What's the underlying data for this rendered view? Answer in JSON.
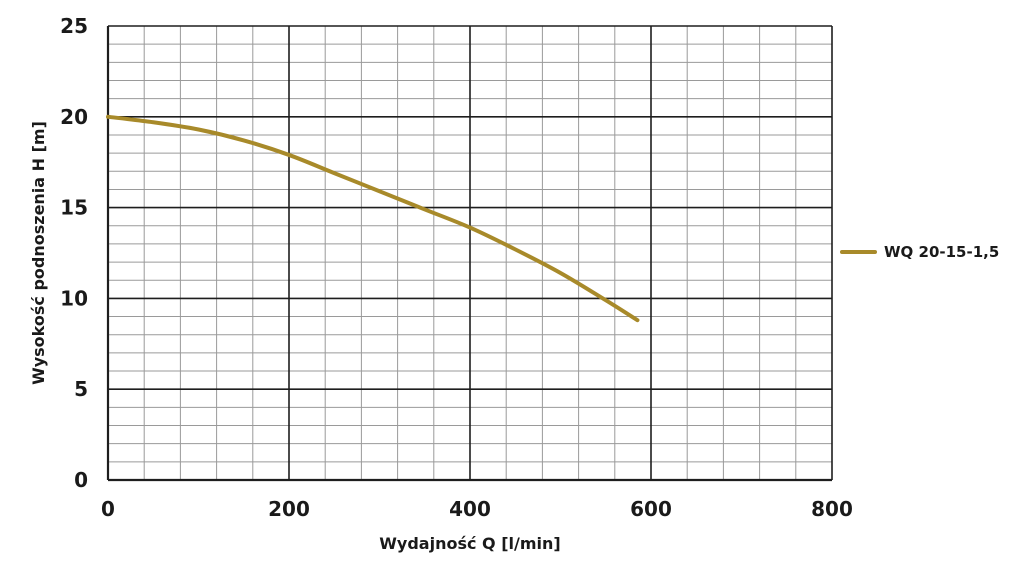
{
  "chart_data": {
    "type": "line",
    "title": "",
    "xlabel": "Wydajność Q [l/min]",
    "ylabel": "Wysokość podnoszenia H [m]",
    "xlim": [
      0,
      800
    ],
    "ylim": [
      0,
      25
    ],
    "x_ticks": [
      "0",
      "200",
      "400",
      "600",
      "800"
    ],
    "y_ticks": [
      "0",
      "5",
      "10",
      "15",
      "20",
      "25"
    ],
    "grid": true,
    "legend_position": "right",
    "series": [
      {
        "name": "WQ 20-15-1,5",
        "color": "#A88A2A",
        "x": [
          0,
          50,
          100,
          150,
          200,
          250,
          300,
          350,
          400,
          450,
          500,
          550,
          585
        ],
        "y": [
          20.0,
          19.7,
          19.3,
          18.7,
          17.9,
          16.9,
          15.9,
          14.9,
          13.9,
          12.7,
          11.4,
          9.9,
          8.8
        ]
      }
    ]
  }
}
